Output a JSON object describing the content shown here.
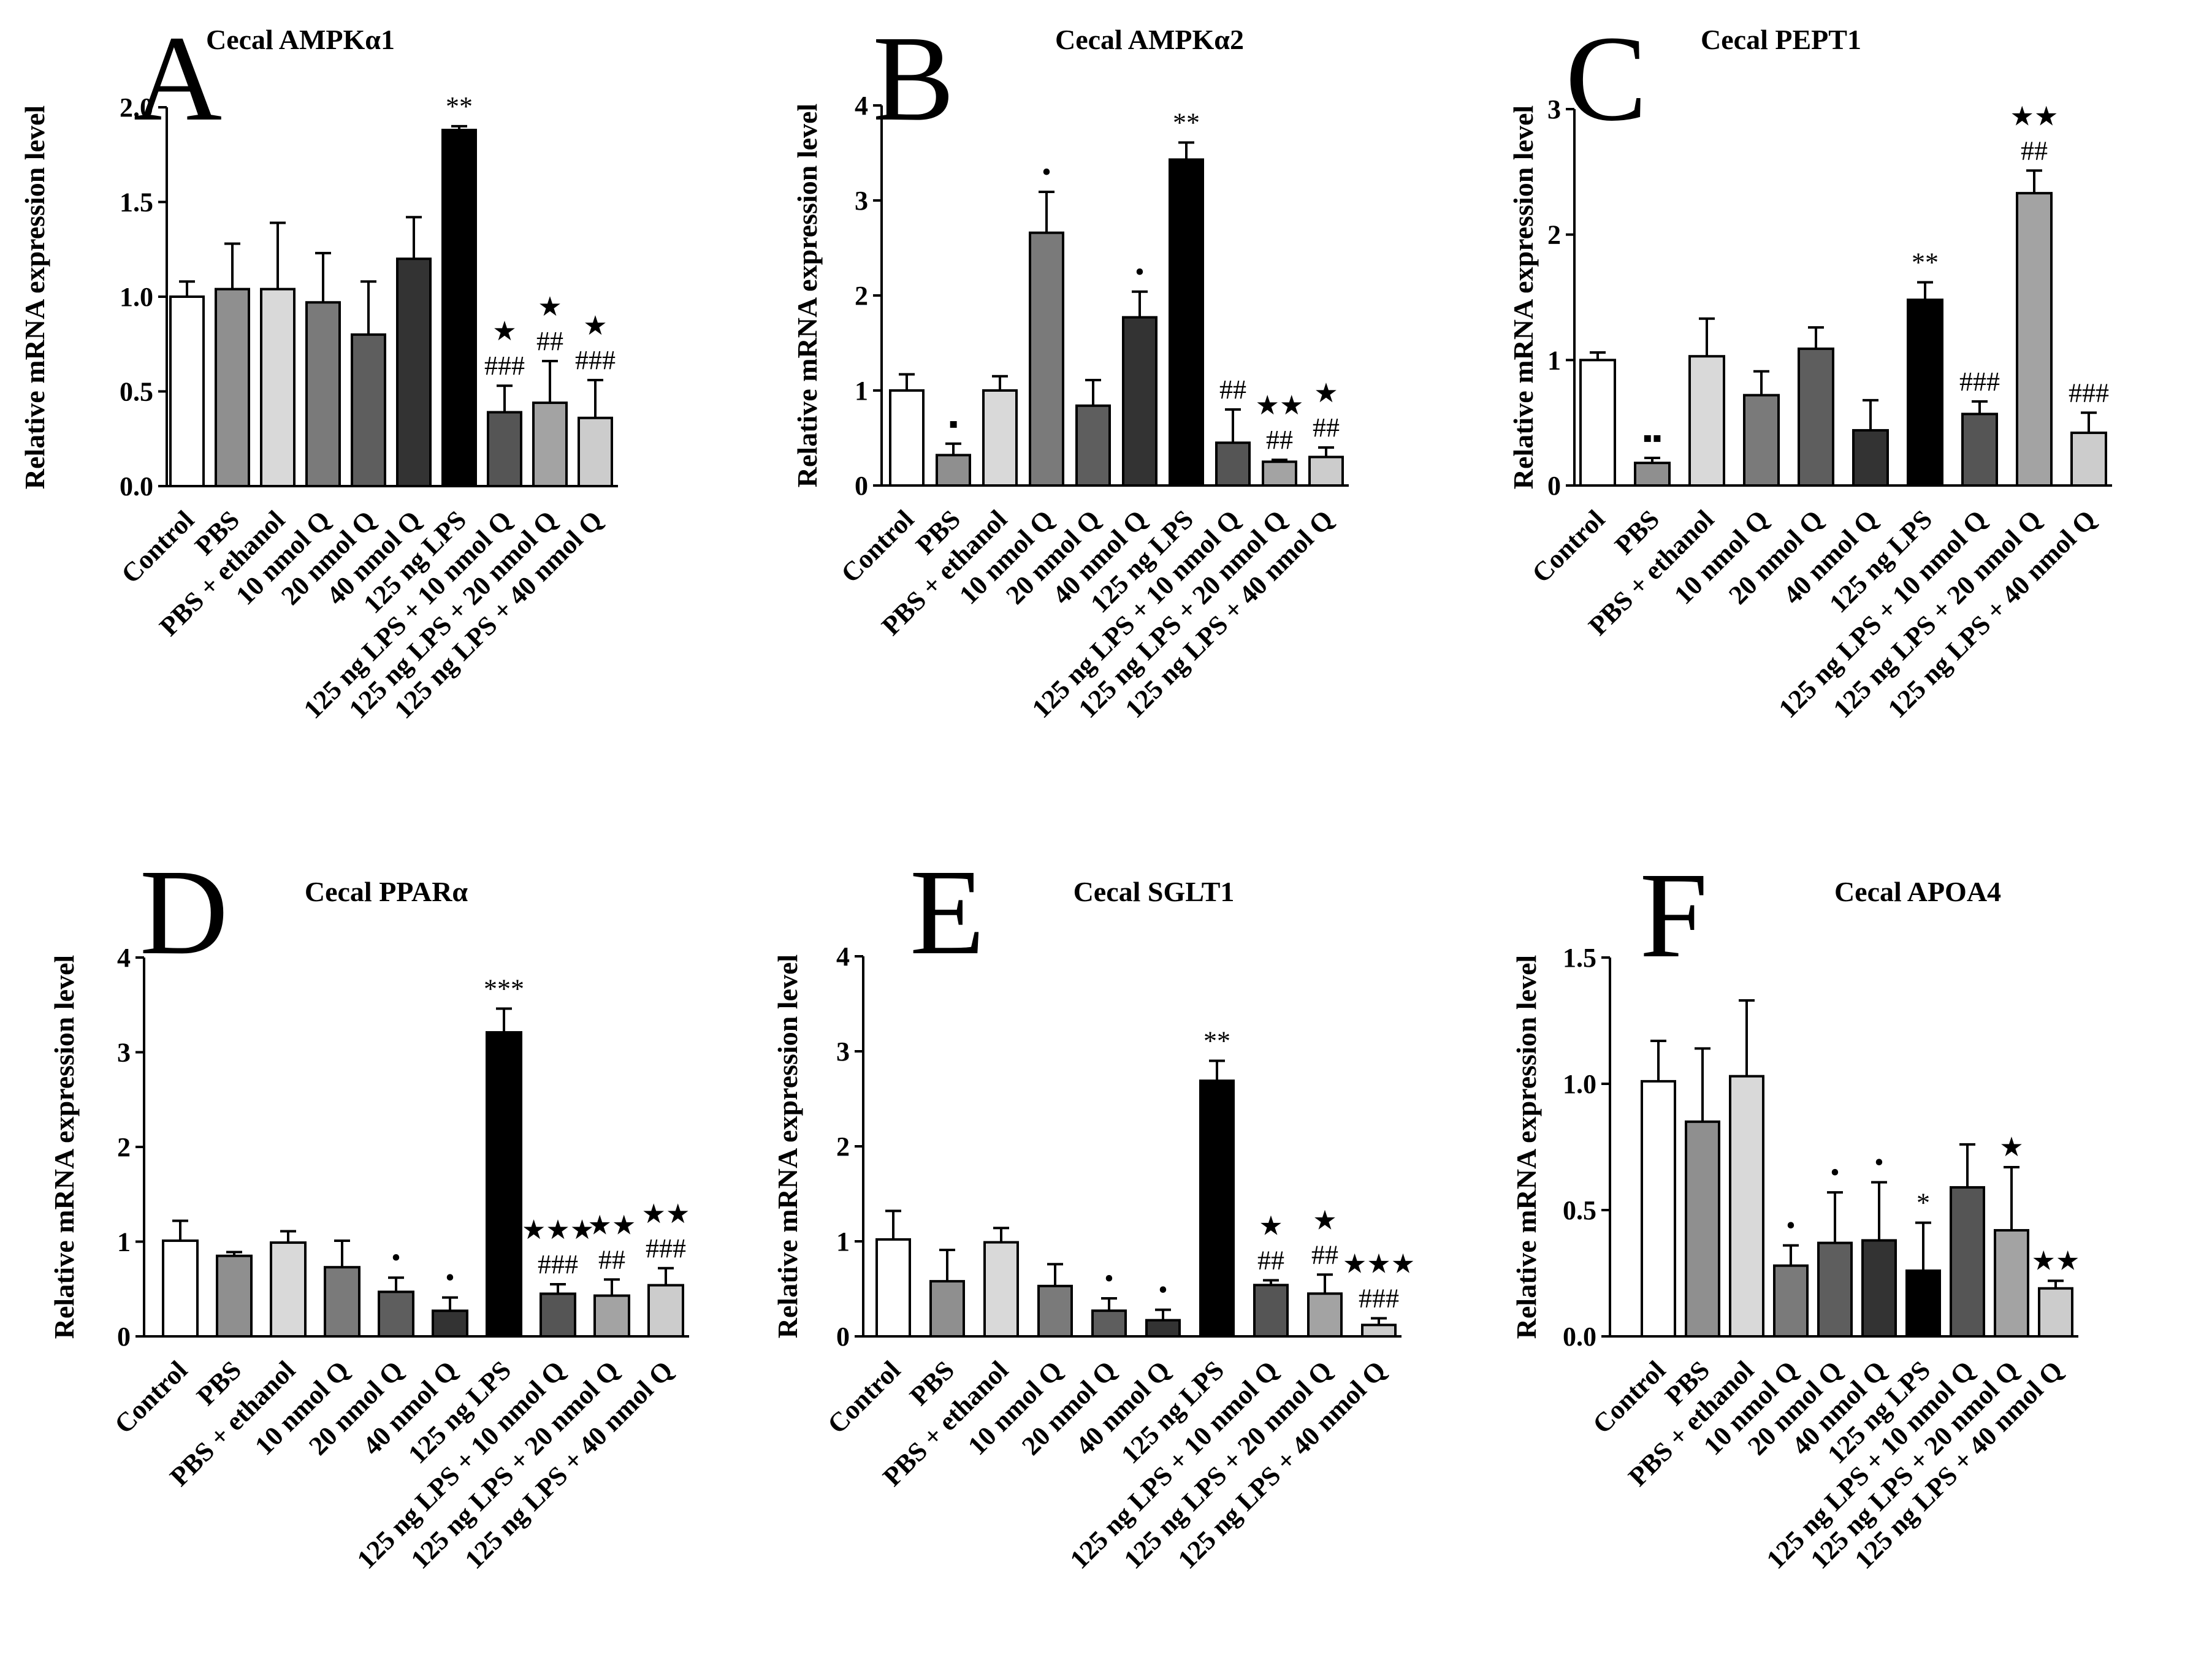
{
  "figure": {
    "ylabel": "Relative mRNA expression level",
    "groups": [
      "Control",
      "PBS",
      "PBS + ethanol",
      "10 nmol Q",
      "20 nmol Q",
      "40 nmol Q",
      "125 ng LPS",
      "125 ng LPS + 10 nmol Q",
      "125 ng LPS + 20 nmol Q",
      "125 ng LPS + 40 nmol Q"
    ],
    "bar_colors": [
      "#ffffff",
      "#8f8f8f",
      "#d9d9d9",
      "#7a7a7a",
      "#5e5e5e",
      "#333333",
      "#000000",
      "#555555",
      "#a3a3a3",
      "#cccccc"
    ],
    "axis_color": "#000000"
  },
  "chart_data": [
    {
      "type": "bar",
      "letter": "A",
      "title": "Cecal AMPKα1",
      "ylabel": "Relative mRNA expression level",
      "categories": [
        "Control",
        "PBS",
        "PBS + ethanol",
        "10 nmol Q",
        "20 nmol Q",
        "40 nmol Q",
        "125 ng LPS",
        "125 ng LPS + 10 nmol Q",
        "125 ng LPS + 20 nmol Q",
        "125 ng LPS + 40 nmol Q"
      ],
      "values": [
        1.0,
        1.04,
        1.04,
        0.97,
        0.8,
        1.2,
        1.88,
        0.39,
        0.44,
        0.36
      ],
      "errors": [
        0.08,
        0.24,
        0.35,
        0.26,
        0.28,
        0.22,
        0.02,
        0.14,
        0.22,
        0.2
      ],
      "ylim": [
        0,
        2.0
      ],
      "yticks": [
        "0.0",
        "0.5",
        "1.0",
        "1.5",
        "2.0"
      ],
      "annotations": [
        [
          "",
          "",
          "",
          "",
          "",
          "",
          "**",
          "★|###",
          "★|##",
          "★|###"
        ]
      ]
    },
    {
      "type": "bar",
      "letter": "B",
      "title": "Cecal AMPKα2",
      "ylabel": "Relative mRNA expression level",
      "categories": [
        "Control",
        "PBS",
        "PBS + ethanol",
        "10 nmol Q",
        "20 nmol Q",
        "40 nmol Q",
        "125 ng LPS",
        "125 ng LPS + 10 nmol Q",
        "125 ng LPS + 20 nmol Q",
        "125 ng LPS + 40 nmol Q"
      ],
      "values": [
        1.0,
        0.32,
        1.0,
        2.66,
        0.84,
        1.77,
        3.43,
        0.45,
        0.25,
        0.3
      ],
      "errors": [
        0.17,
        0.12,
        0.15,
        0.43,
        0.27,
        0.27,
        0.18,
        0.35,
        0.02,
        0.1
      ],
      "ylim": [
        0,
        4
      ],
      "yticks": [
        "0",
        "1",
        "2",
        "3",
        "4"
      ],
      "annotations": [
        [
          "",
          "▪",
          "",
          "•",
          "",
          "•",
          "**",
          "##",
          "★★|##",
          "★|##"
        ]
      ]
    },
    {
      "type": "bar",
      "letter": "C",
      "title": "Cecal PEPT1",
      "ylabel": "Relative mRNA expression level",
      "categories": [
        "Control",
        "PBS",
        "PBS + ethanol",
        "10 nmol Q",
        "20 nmol Q",
        "40 nmol Q",
        "125 ng LPS",
        "125 ng LPS + 10 nmol Q",
        "125 ng LPS + 20 nmol Q",
        "125 ng LPS + 40 nmol Q"
      ],
      "values": [
        1.0,
        0.18,
        1.03,
        0.72,
        1.09,
        0.44,
        1.48,
        0.57,
        2.33,
        0.42
      ],
      "errors": [
        0.06,
        0.04,
        0.3,
        0.19,
        0.17,
        0.24,
        0.14,
        0.1,
        0.18,
        0.16
      ],
      "ylim": [
        0,
        3
      ],
      "yticks": [
        "0",
        "1",
        "2",
        "3"
      ],
      "annotations": [
        [
          "",
          "▪▪",
          "",
          "",
          "",
          "",
          "**",
          "###",
          "★★|##",
          "###"
        ]
      ]
    },
    {
      "type": "bar",
      "letter": "D",
      "title": "Cecal PPARα",
      "ylabel": "Relative mRNA expression level",
      "categories": [
        "Control",
        "PBS",
        "PBS + ethanol",
        "10 nmol Q",
        "20 nmol Q",
        "40 nmol Q",
        "125 ng LPS",
        "125 ng LPS + 10 nmol Q",
        "125 ng LPS + 20 nmol Q",
        "125 ng LPS + 40 nmol Q"
      ],
      "values": [
        1.01,
        0.85,
        0.99,
        0.73,
        0.47,
        0.27,
        3.21,
        0.45,
        0.43,
        0.54
      ],
      "errors": [
        0.21,
        0.04,
        0.12,
        0.28,
        0.15,
        0.14,
        0.25,
        0.1,
        0.17,
        0.18
      ],
      "ylim": [
        0,
        4
      ],
      "yticks": [
        "0",
        "1",
        "2",
        "3",
        "4"
      ],
      "annotations": [
        [
          "",
          "",
          "",
          "",
          "•",
          "•",
          "***",
          "★★★|###",
          "★★|##",
          "★★|###"
        ]
      ]
    },
    {
      "type": "bar",
      "letter": "E",
      "title": "Cecal SGLT1",
      "ylabel": "Relative mRNA expression level",
      "categories": [
        "Control",
        "PBS",
        "PBS + ethanol",
        "10 nmol Q",
        "20 nmol Q",
        "40 nmol Q",
        "125 ng LPS",
        "125 ng LPS + 10 nmol Q",
        "125 ng LPS + 20 nmol Q",
        "125 ng LPS + 40 nmol Q"
      ],
      "values": [
        1.02,
        0.58,
        0.99,
        0.53,
        0.27,
        0.17,
        2.69,
        0.54,
        0.45,
        0.12
      ],
      "errors": [
        0.3,
        0.33,
        0.15,
        0.23,
        0.13,
        0.11,
        0.21,
        0.05,
        0.2,
        0.07
      ],
      "ylim": [
        0,
        4
      ],
      "yticks": [
        "0",
        "1",
        "2",
        "3",
        "4"
      ],
      "annotations": [
        [
          "",
          "",
          "",
          "",
          "•",
          "•",
          "**",
          "★|##",
          "★|##",
          "★★★|###"
        ]
      ]
    },
    {
      "type": "bar",
      "letter": "F",
      "title": "Cecal APOA4",
      "ylabel": "Relative mRNA expression level",
      "categories": [
        "Control",
        "PBS",
        "PBS + ethanol",
        "10 nmol Q",
        "20 nmol Q",
        "40 nmol Q",
        "125 ng LPS",
        "125 ng LPS + 10 nmol Q",
        "125 ng LPS + 20 nmol Q",
        "125 ng LPS + 40 nmol Q"
      ],
      "values": [
        1.01,
        0.85,
        1.03,
        0.28,
        0.37,
        0.38,
        0.26,
        0.59,
        0.42,
        0.19
      ],
      "errors": [
        0.16,
        0.29,
        0.3,
        0.08,
        0.2,
        0.23,
        0.19,
        0.17,
        0.25,
        0.03
      ],
      "ylim": [
        0,
        1.5
      ],
      "yticks": [
        "0.0",
        "0.5",
        "1.0",
        "1.5"
      ],
      "annotations": [
        [
          "",
          "",
          "",
          "•",
          "•",
          "•",
          "*",
          "",
          "★",
          "★★"
        ]
      ]
    }
  ]
}
